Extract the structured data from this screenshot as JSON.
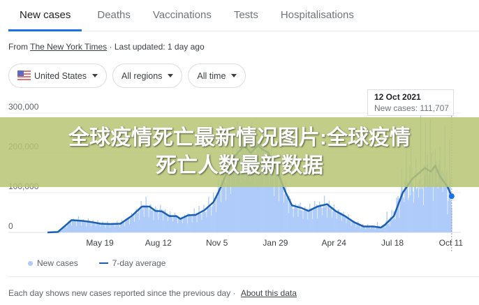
{
  "tabs": [
    {
      "label": "New cases",
      "active": true
    },
    {
      "label": "Deaths"
    },
    {
      "label": "Vaccinations"
    },
    {
      "label": "Tests"
    },
    {
      "label": "Hospitalisations"
    }
  ],
  "source": {
    "prefix": "From",
    "name": "The New York Times",
    "updated": "· Last updated: 1 day ago"
  },
  "filters": {
    "country": "United States",
    "country_icon": "us-flag-icon",
    "regions": "All regions",
    "time": "All time"
  },
  "tooltip": {
    "date": "12 Oct 2021",
    "new_cases": "New cases: 111,707"
  },
  "legend": {
    "new_cases": "New cases",
    "average": "7-day average"
  },
  "footer": {
    "text": "Each day shows new cases reported since the previous day  ·",
    "link": "About this data"
  },
  "banner": {
    "line1": "全球疫情死亡最新情况图片:全球疫情",
    "line2": "死亡人数最新数据"
  },
  "colors": {
    "bars": "#aecbfa",
    "line": "#1a5fb4",
    "accent": "#1a73e8"
  },
  "chart_data": {
    "type": "bar+line",
    "ylim": [
      0,
      300000
    ],
    "yticks": [
      "0",
      "100,000",
      "200,000",
      "300,000"
    ],
    "xticks": [
      [
        "2020-05-19",
        "May 19"
      ],
      [
        "2020-08-12",
        "Aug 12"
      ],
      [
        "2020-11-05",
        "Nov 5"
      ],
      [
        "2021-01-29",
        "Jan 29"
      ],
      [
        "2021-04-24",
        "Apr 24"
      ],
      [
        "2021-07-18",
        "Jul 18"
      ],
      [
        "2021-10-11",
        "Oct 11"
      ]
    ],
    "grid": "horizontal",
    "highlighted": {
      "date": "2021-10-12",
      "new_cases": 111707
    },
    "series": [
      {
        "name": "7-day average",
        "points": [
          [
            "2020-03-04",
            0
          ],
          [
            "2020-03-19",
            1000
          ],
          [
            "2020-04-08",
            31000
          ],
          [
            "2020-04-24",
            29000
          ],
          [
            "2020-05-07",
            26000
          ],
          [
            "2020-05-20",
            22000
          ],
          [
            "2020-06-02",
            21000
          ],
          [
            "2020-06-18",
            22000
          ],
          [
            "2020-07-04",
            41000
          ],
          [
            "2020-07-19",
            65000
          ],
          [
            "2020-07-30",
            65000
          ],
          [
            "2020-08-08",
            54000
          ],
          [
            "2020-08-17",
            53000
          ],
          [
            "2020-08-28",
            41000
          ],
          [
            "2020-09-07",
            41000
          ],
          [
            "2020-09-13",
            34000
          ],
          [
            "2020-09-24",
            43000
          ],
          [
            "2020-10-05",
            44000
          ],
          [
            "2020-10-18",
            56000
          ],
          [
            "2020-10-31",
            76000
          ],
          [
            "2020-11-07",
            100000
          ],
          [
            "2020-11-19",
            147000
          ],
          [
            "2020-12-02",
            194000
          ],
          [
            "2020-12-15",
            218000
          ],
          [
            "2020-12-24",
            200000
          ],
          [
            "2021-01-04",
            218000
          ],
          [
            "2021-01-10",
            209000
          ],
          [
            "2021-01-19",
            200000
          ],
          [
            "2021-02-02",
            147000
          ],
          [
            "2021-02-13",
            100000
          ],
          [
            "2021-02-22",
            68000
          ],
          [
            "2021-03-07",
            62000
          ],
          [
            "2021-03-18",
            54000
          ],
          [
            "2021-03-31",
            65000
          ],
          [
            "2021-04-14",
            71000
          ],
          [
            "2021-04-27",
            53000
          ],
          [
            "2021-05-10",
            41000
          ],
          [
            "2021-05-23",
            26000
          ],
          [
            "2021-06-06",
            15000
          ],
          [
            "2021-06-20",
            15000
          ],
          [
            "2021-07-01",
            12000
          ],
          [
            "2021-07-07",
            19000
          ],
          [
            "2021-07-20",
            41000
          ],
          [
            "2021-08-02",
            100000
          ],
          [
            "2021-08-16",
            135000
          ],
          [
            "2021-09-03",
            162000
          ],
          [
            "2021-09-12",
            153000
          ],
          [
            "2021-09-18",
            168000
          ],
          [
            "2021-09-25",
            141000
          ],
          [
            "2021-10-06",
            115000
          ],
          [
            "2021-10-12",
            91000
          ]
        ]
      }
    ]
  }
}
